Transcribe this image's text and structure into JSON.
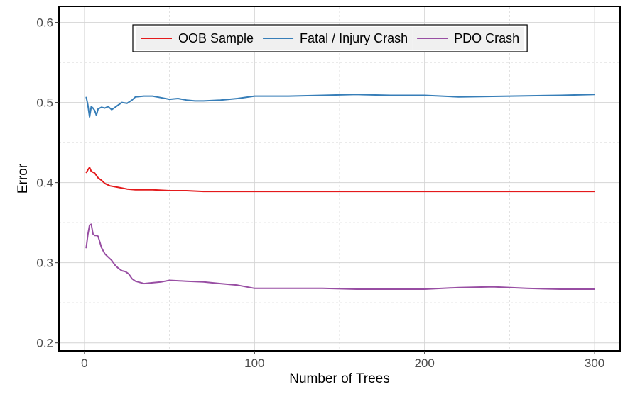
{
  "chart_data": {
    "type": "line",
    "title": "",
    "xlabel": "Number of Trees",
    "ylabel": "Error",
    "xlim": [
      -15,
      315
    ],
    "ylim": [
      0.19,
      0.62
    ],
    "x_ticks": [
      0,
      100,
      200,
      300
    ],
    "x_tick_labels": [
      "0",
      "100",
      "200",
      "300"
    ],
    "y_ticks": [
      0.2,
      0.3,
      0.4,
      0.5,
      0.6
    ],
    "y_tick_labels": [
      "0.2",
      "0.3",
      "0.4",
      "0.5",
      "0.6"
    ],
    "grid": true,
    "legend_position": "top-center",
    "series": [
      {
        "name": "OOB Sample",
        "color": "#e41a1c",
        "x": [
          1,
          2,
          3,
          4,
          5,
          6,
          7,
          8,
          10,
          12,
          15,
          20,
          25,
          30,
          40,
          50,
          60,
          70,
          80,
          90,
          100,
          120,
          150,
          200,
          250,
          300
        ],
        "values": [
          0.412,
          0.416,
          0.419,
          0.414,
          0.413,
          0.412,
          0.409,
          0.406,
          0.403,
          0.399,
          0.396,
          0.394,
          0.392,
          0.391,
          0.391,
          0.39,
          0.39,
          0.389,
          0.389,
          0.389,
          0.389,
          0.389,
          0.389,
          0.389,
          0.389,
          0.389
        ]
      },
      {
        "name": "Fatal / Injury Crash",
        "color": "#377eb8",
        "x": [
          1,
          2,
          3,
          4,
          5,
          6,
          7,
          8,
          10,
          12,
          14,
          16,
          18,
          20,
          22,
          25,
          28,
          30,
          35,
          40,
          45,
          50,
          55,
          60,
          65,
          70,
          80,
          90,
          100,
          110,
          120,
          140,
          160,
          180,
          200,
          220,
          250,
          280,
          300
        ],
        "values": [
          0.507,
          0.497,
          0.482,
          0.495,
          0.493,
          0.49,
          0.484,
          0.492,
          0.494,
          0.493,
          0.495,
          0.491,
          0.494,
          0.497,
          0.5,
          0.499,
          0.503,
          0.507,
          0.508,
          0.508,
          0.506,
          0.504,
          0.505,
          0.503,
          0.502,
          0.502,
          0.503,
          0.505,
          0.508,
          0.508,
          0.508,
          0.509,
          0.51,
          0.509,
          0.509,
          0.507,
          0.508,
          0.509,
          0.51
        ]
      },
      {
        "name": "PDO Crash",
        "color": "#984ea3",
        "x": [
          1,
          2,
          3,
          4,
          5,
          6,
          7,
          8,
          9,
          10,
          12,
          14,
          16,
          18,
          20,
          22,
          24,
          26,
          28,
          30,
          35,
          40,
          45,
          50,
          60,
          70,
          80,
          90,
          100,
          110,
          120,
          140,
          160,
          180,
          200,
          220,
          240,
          260,
          280,
          300
        ],
        "values": [
          0.318,
          0.335,
          0.347,
          0.348,
          0.336,
          0.334,
          0.334,
          0.333,
          0.326,
          0.319,
          0.311,
          0.307,
          0.303,
          0.297,
          0.293,
          0.29,
          0.289,
          0.286,
          0.28,
          0.277,
          0.274,
          0.275,
          0.276,
          0.278,
          0.277,
          0.276,
          0.274,
          0.272,
          0.268,
          0.268,
          0.268,
          0.268,
          0.267,
          0.267,
          0.267,
          0.269,
          0.27,
          0.268,
          0.267,
          0.267
        ]
      }
    ]
  }
}
